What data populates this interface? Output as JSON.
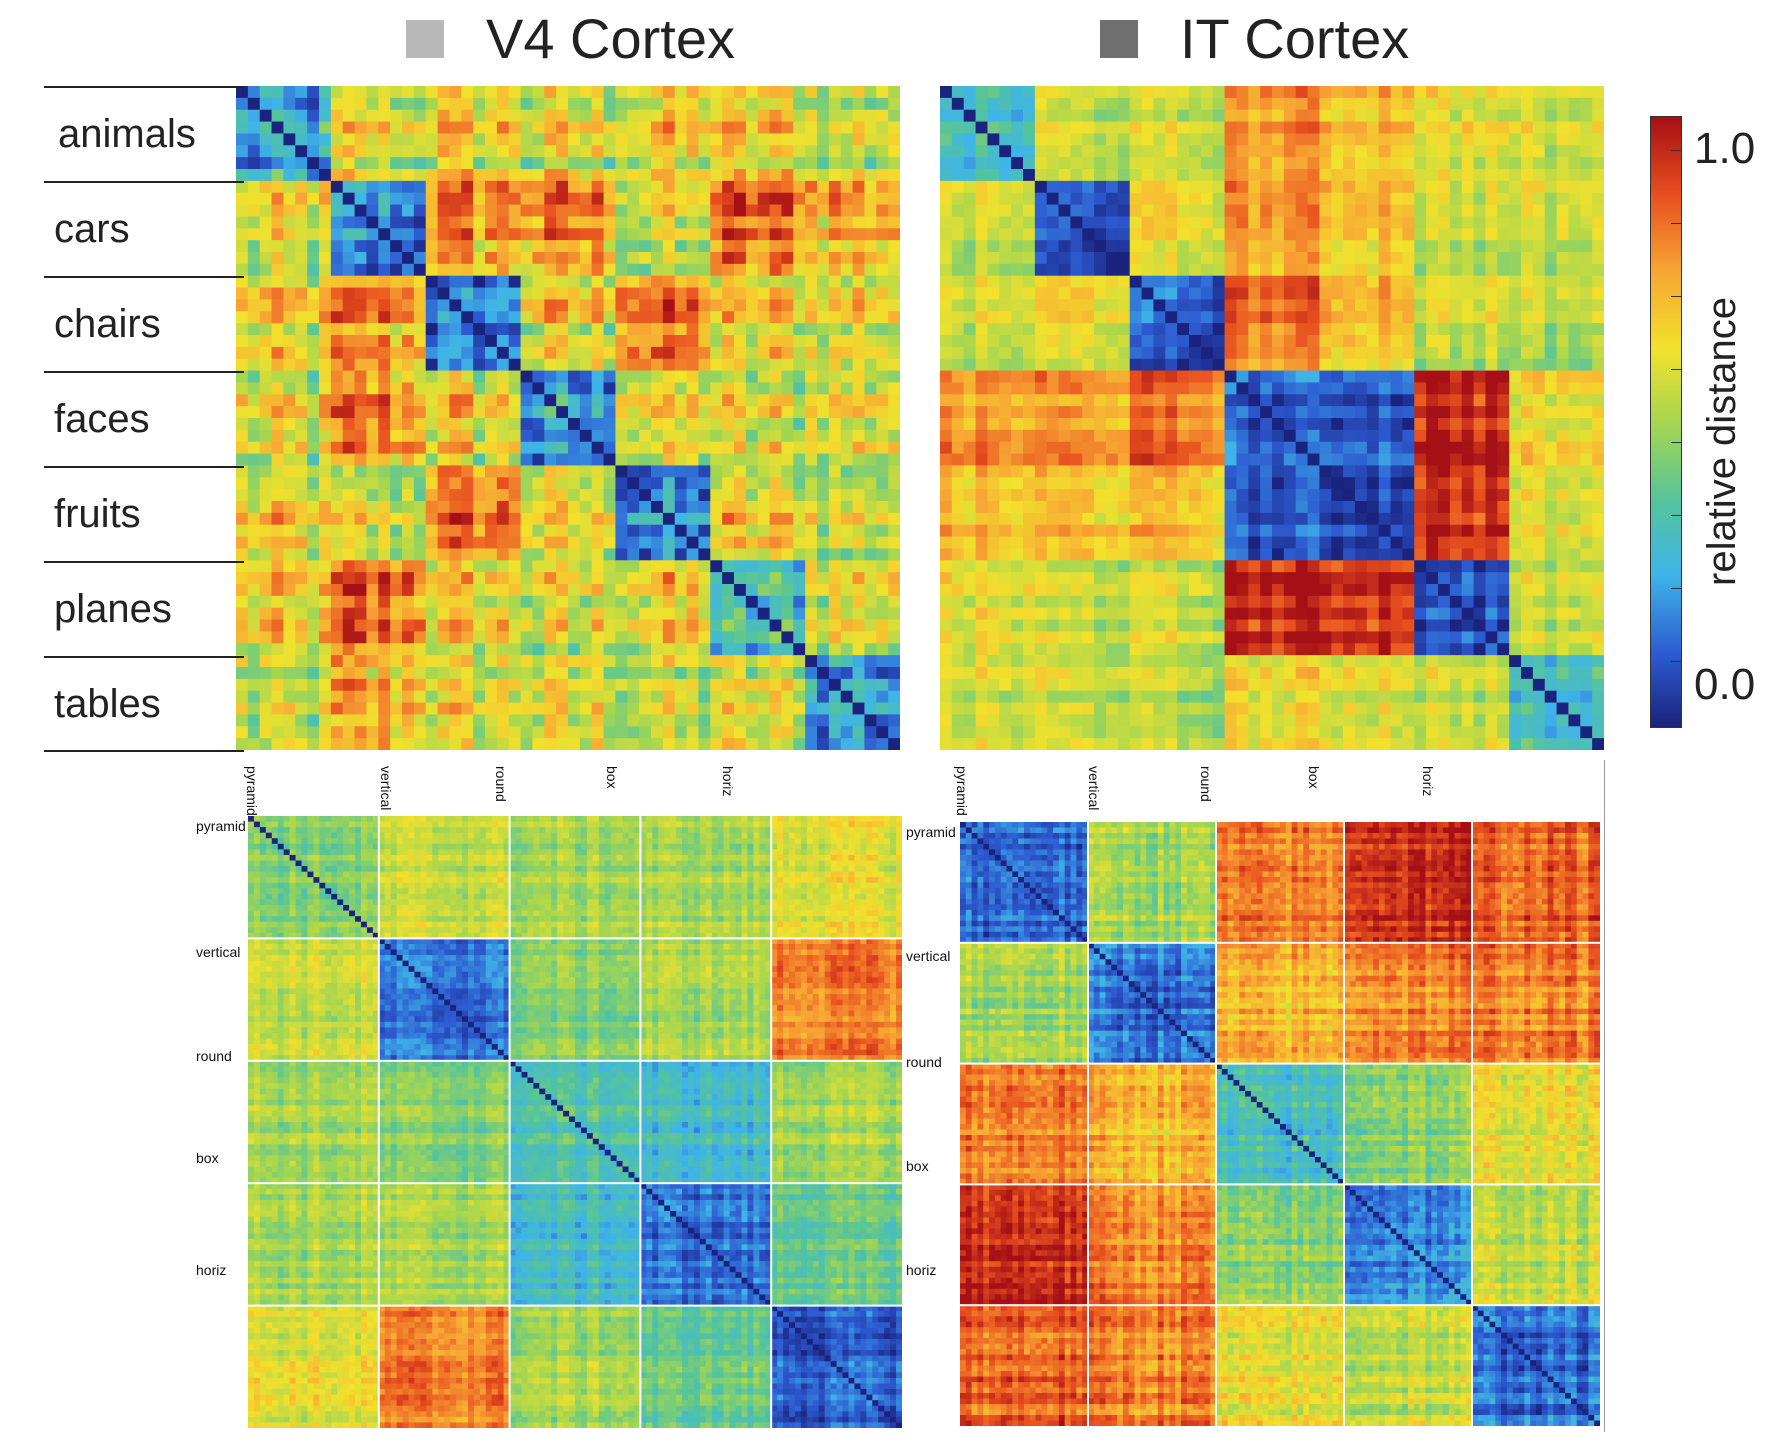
{
  "chart_data": [
    {
      "type": "heatmap",
      "title": "V4 Cortex",
      "categories": [
        "animals",
        "cars",
        "chairs",
        "faces",
        "fruits",
        "planes",
        "tables"
      ],
      "block_distances": [
        [
          0.2,
          0.55,
          0.6,
          0.55,
          0.6,
          0.6,
          0.55
        ],
        [
          0.55,
          0.15,
          0.75,
          0.75,
          0.55,
          0.8,
          0.7
        ],
        [
          0.6,
          0.75,
          0.15,
          0.6,
          0.8,
          0.6,
          0.6
        ],
        [
          0.55,
          0.75,
          0.6,
          0.2,
          0.6,
          0.55,
          0.6
        ],
        [
          0.6,
          0.55,
          0.8,
          0.6,
          0.2,
          0.6,
          0.55
        ],
        [
          0.6,
          0.8,
          0.6,
          0.55,
          0.6,
          0.3,
          0.6
        ],
        [
          0.55,
          0.7,
          0.6,
          0.6,
          0.55,
          0.6,
          0.25
        ]
      ]
    },
    {
      "type": "heatmap",
      "title": "IT Cortex",
      "categories": [
        "animals",
        "cars",
        "chairs",
        "faces",
        "fruits",
        "planes",
        "tables"
      ],
      "block_distances": [
        [
          0.3,
          0.55,
          0.55,
          0.75,
          0.7,
          0.6,
          0.55
        ],
        [
          0.55,
          0.1,
          0.6,
          0.75,
          0.7,
          0.55,
          0.55
        ],
        [
          0.55,
          0.6,
          0.1,
          0.8,
          0.7,
          0.55,
          0.5
        ],
        [
          0.75,
          0.75,
          0.8,
          0.1,
          0.12,
          0.95,
          0.6
        ],
        [
          0.7,
          0.7,
          0.7,
          0.12,
          0.1,
          0.95,
          0.6
        ],
        [
          0.6,
          0.55,
          0.55,
          0.95,
          0.95,
          0.1,
          0.55
        ],
        [
          0.55,
          0.55,
          0.5,
          0.6,
          0.6,
          0.55,
          0.3
        ]
      ]
    },
    {
      "type": "heatmap",
      "categories": [
        "pyramid",
        "vertical",
        "round",
        "box",
        "horiz"
      ],
      "block_distances": [
        [
          0.45,
          0.55,
          0.5,
          0.5,
          0.6
        ],
        [
          0.55,
          0.15,
          0.45,
          0.5,
          0.8
        ],
        [
          0.5,
          0.45,
          0.35,
          0.3,
          0.5
        ],
        [
          0.5,
          0.5,
          0.3,
          0.15,
          0.4
        ],
        [
          0.6,
          0.8,
          0.5,
          0.4,
          0.12
        ]
      ]
    },
    {
      "type": "heatmap",
      "categories": [
        "pyramid",
        "vertical",
        "round",
        "box",
        "horiz"
      ],
      "block_distances": [
        [
          0.15,
          0.5,
          0.8,
          0.95,
          0.85
        ],
        [
          0.5,
          0.15,
          0.7,
          0.8,
          0.8
        ],
        [
          0.8,
          0.7,
          0.3,
          0.45,
          0.6
        ],
        [
          0.95,
          0.8,
          0.45,
          0.2,
          0.55
        ],
        [
          0.85,
          0.8,
          0.6,
          0.55,
          0.15
        ]
      ]
    }
  ],
  "colorbar": {
    "label": "relative distance",
    "min_label": "0.0",
    "max_label": "1.0",
    "colormap": [
      "#1a237e",
      "#2d5bd0",
      "#3fb4e8",
      "#54c49c",
      "#a6d650",
      "#f2e12d",
      "#f7a434",
      "#e8501f",
      "#a50f15"
    ]
  }
}
